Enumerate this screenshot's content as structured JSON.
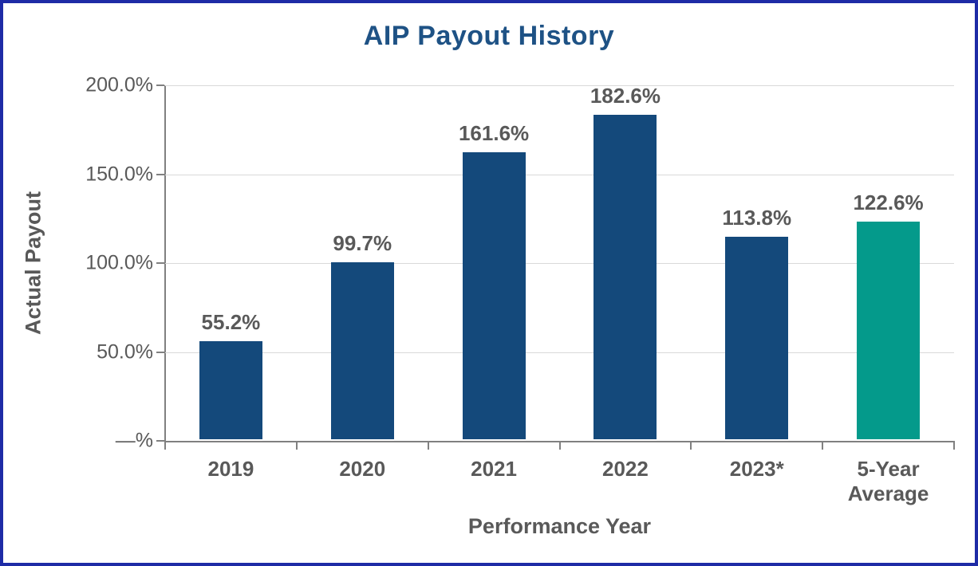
{
  "chart_data": {
    "type": "bar",
    "title": "AIP Payout History",
    "xlabel": "Performance Year",
    "ylabel": "Actual Payout",
    "categories": [
      "2019",
      "2020",
      "2021",
      "2022",
      "2023*",
      "5-Year\nAverage"
    ],
    "values": [
      55.2,
      99.7,
      161.6,
      182.6,
      113.8,
      122.6
    ],
    "value_labels": [
      "55.2%",
      "99.7%",
      "161.6%",
      "182.6%",
      "113.8%",
      "122.6%"
    ],
    "bar_colors": [
      "#14497B",
      "#14497B",
      "#14497B",
      "#14497B",
      "#14497B",
      "#049A8B"
    ],
    "ylim": [
      0,
      200
    ],
    "ytick_values": [
      200,
      150,
      100,
      50,
      0
    ],
    "ytick_labels": [
      "200.0%",
      "150.0%",
      "100.0%",
      "50.0%",
      "—%"
    ],
    "grid": true,
    "legend": "none",
    "colors": {
      "bar_primary": "#14497B",
      "bar_average": "#049A8B",
      "title": "#1E5285",
      "label_text": "#595959",
      "axis": "#808080",
      "gridline": "#D9D9D9",
      "frame_border": "#1E2BA6"
    }
  }
}
